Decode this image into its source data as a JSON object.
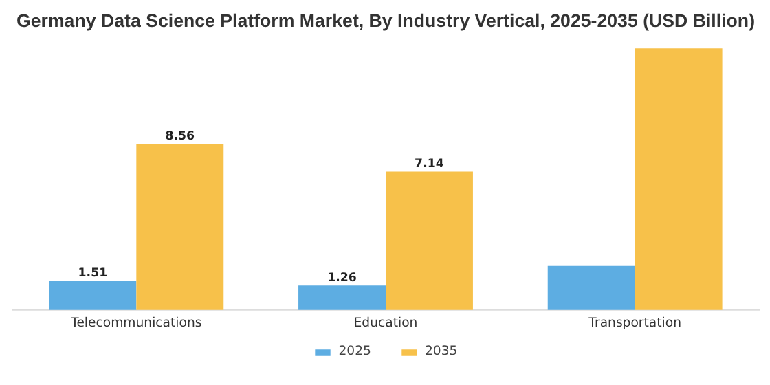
{
  "chart_data": {
    "type": "bar",
    "title": "Germany Data Science Platform Market, By Industry Vertical, 2025-2035 (USD Billion)",
    "categories": [
      "Telecommunications",
      "Education",
      "Transportation"
    ],
    "series": [
      {
        "name": "2025",
        "color": "#5dade2",
        "values": [
          1.51,
          1.26,
          2.27
        ],
        "value_labels": [
          "1.51",
          "1.26",
          null
        ]
      },
      {
        "name": "2035",
        "color": "#f7c14a",
        "values": [
          8.56,
          7.14,
          13.49
        ],
        "value_labels": [
          "8.56",
          "7.14",
          null
        ]
      }
    ],
    "legend": "bottom"
  }
}
